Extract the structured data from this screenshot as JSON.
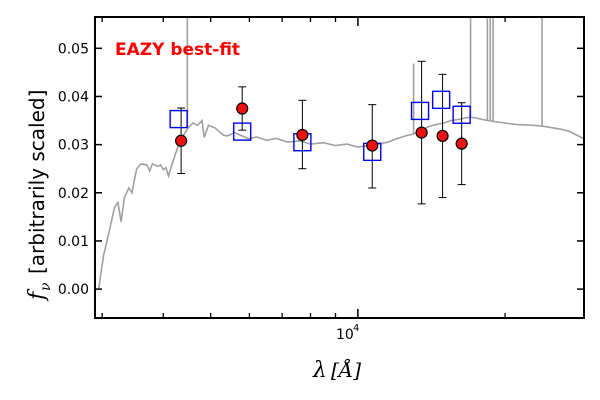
{
  "chart_data": {
    "type": "scatter",
    "x_scale": "log",
    "xlim": [
      2900,
      29000
    ],
    "ylim": [
      -0.006,
      0.0565
    ],
    "xlabel": "λ [Å]",
    "ylabel": "f_ν [arbitrarily scaled]",
    "ylabel_symbol": "f",
    "ylabel_subscript": "ν",
    "ylabel_rest": "[arbitrarily scaled]",
    "xlabel_symbol": "λ",
    "xlabel_unit": "[Å]",
    "x_tick_label": {
      "value": 10000,
      "base": "10",
      "exponent": "4"
    },
    "y_ticks": [
      {
        "value": 0.0,
        "label": "0.00"
      },
      {
        "value": 0.01,
        "label": "0.01"
      },
      {
        "value": 0.02,
        "label": "0.02"
      },
      {
        "value": 0.03,
        "label": "0.03"
      },
      {
        "value": 0.04,
        "label": "0.04"
      },
      {
        "value": 0.05,
        "label": "0.05"
      }
    ],
    "annotation": {
      "text": "EAZY best-fit",
      "color": "#ff0000"
    },
    "colors": {
      "model": "#a0a0a0",
      "observed_fill": "#ee1111",
      "observed_edge": "#000000",
      "template_edge": "#0000ee",
      "error_bar": "#000000"
    },
    "model_spectrum": [
      [
        2950,
        0.0
      ],
      [
        3020,
        0.007
      ],
      [
        3100,
        0.012
      ],
      [
        3180,
        0.017
      ],
      [
        3230,
        0.018
      ],
      [
        3280,
        0.014
      ],
      [
        3330,
        0.019
      ],
      [
        3400,
        0.021
      ],
      [
        3450,
        0.02
      ],
      [
        3530,
        0.025
      ],
      [
        3600,
        0.026
      ],
      [
        3700,
        0.0258
      ],
      [
        3750,
        0.0245
      ],
      [
        3800,
        0.026
      ],
      [
        3900,
        0.0255
      ],
      [
        3950,
        0.0258
      ],
      [
        4000,
        0.0248
      ],
      [
        4050,
        0.0252
      ],
      [
        4100,
        0.0235
      ],
      [
        4200,
        0.027
      ],
      [
        4300,
        0.03
      ],
      [
        4400,
        0.032
      ],
      [
        4500,
        0.0335
      ],
      [
        4600,
        0.0345
      ],
      [
        4700,
        0.034
      ],
      [
        4800,
        0.035
      ],
      [
        4850,
        0.0315
      ],
      [
        4950,
        0.034
      ],
      [
        5100,
        0.0335
      ],
      [
        5300,
        0.032
      ],
      [
        5400,
        0.0318
      ],
      [
        5600,
        0.0325
      ],
      [
        5800,
        0.0318
      ],
      [
        6000,
        0.0312
      ],
      [
        6200,
        0.0316
      ],
      [
        6500,
        0.0309
      ],
      [
        6800,
        0.0313
      ],
      [
        7200,
        0.0305
      ],
      [
        7600,
        0.0308
      ],
      [
        8000,
        0.0301
      ],
      [
        8500,
        0.0304
      ],
      [
        9000,
        0.0298
      ],
      [
        9500,
        0.0301
      ],
      [
        10000,
        0.0295
      ],
      [
        10500,
        0.0298
      ],
      [
        11000,
        0.0301
      ],
      [
        11500,
        0.0305
      ],
      [
        12000,
        0.0312
      ],
      [
        12500,
        0.0318
      ],
      [
        13000,
        0.0322
      ],
      [
        13500,
        0.033
      ],
      [
        14000,
        0.0338
      ],
      [
        14500,
        0.0342
      ],
      [
        15000,
        0.0345
      ],
      [
        15500,
        0.035
      ],
      [
        16000,
        0.0352
      ],
      [
        16500,
        0.0355
      ],
      [
        17000,
        0.0357
      ],
      [
        17500,
        0.0355
      ],
      [
        18000,
        0.0352
      ],
      [
        19000,
        0.0348
      ],
      [
        20000,
        0.0345
      ],
      [
        21000,
        0.0342
      ],
      [
        22000,
        0.0341
      ],
      [
        23000,
        0.034
      ],
      [
        24000,
        0.0338
      ],
      [
        25000,
        0.0335
      ],
      [
        26000,
        0.0332
      ],
      [
        27000,
        0.0328
      ],
      [
        28000,
        0.032
      ],
      [
        29000,
        0.0312
      ]
    ],
    "emission_lines": [
      {
        "x": 4480,
        "y": 0.0565
      },
      {
        "x": 13000,
        "y": 0.046
      },
      {
        "x": 17000,
        "y": 0.0565
      },
      {
        "x": 18400,
        "y": 0.0565
      },
      {
        "x": 18650,
        "y": 0.0565
      },
      {
        "x": 18900,
        "y": 0.0565
      },
      {
        "x": 23800,
        "y": 0.0565
      }
    ],
    "observed": [
      {
        "x": 4350,
        "y": 0.0308,
        "yerr_low": 0.0068,
        "yerr_high": 0.0068
      },
      {
        "x": 5800,
        "y": 0.0375,
        "yerr_low": 0.0045,
        "yerr_high": 0.0045
      },
      {
        "x": 7700,
        "y": 0.032,
        "yerr_low": 0.007,
        "yerr_high": 0.0072
      },
      {
        "x": 10700,
        "y": 0.0298,
        "yerr_low": 0.0088,
        "yerr_high": 0.0085
      },
      {
        "x": 13500,
        "y": 0.0325,
        "yerr_low": 0.0148,
        "yerr_high": 0.0148
      },
      {
        "x": 14900,
        "y": 0.0318,
        "yerr_low": 0.0128,
        "yerr_high": 0.0128
      },
      {
        "x": 16300,
        "y": 0.0302,
        "yerr_low": 0.0085,
        "yerr_high": 0.0085
      }
    ],
    "template_fluxes": [
      {
        "x": 4300,
        "y": 0.0353
      },
      {
        "x": 5800,
        "y": 0.0327
      },
      {
        "x": 7700,
        "y": 0.0305
      },
      {
        "x": 10700,
        "y": 0.0285
      },
      {
        "x": 13400,
        "y": 0.037
      },
      {
        "x": 14800,
        "y": 0.0393
      },
      {
        "x": 16300,
        "y": 0.0362
      }
    ]
  }
}
